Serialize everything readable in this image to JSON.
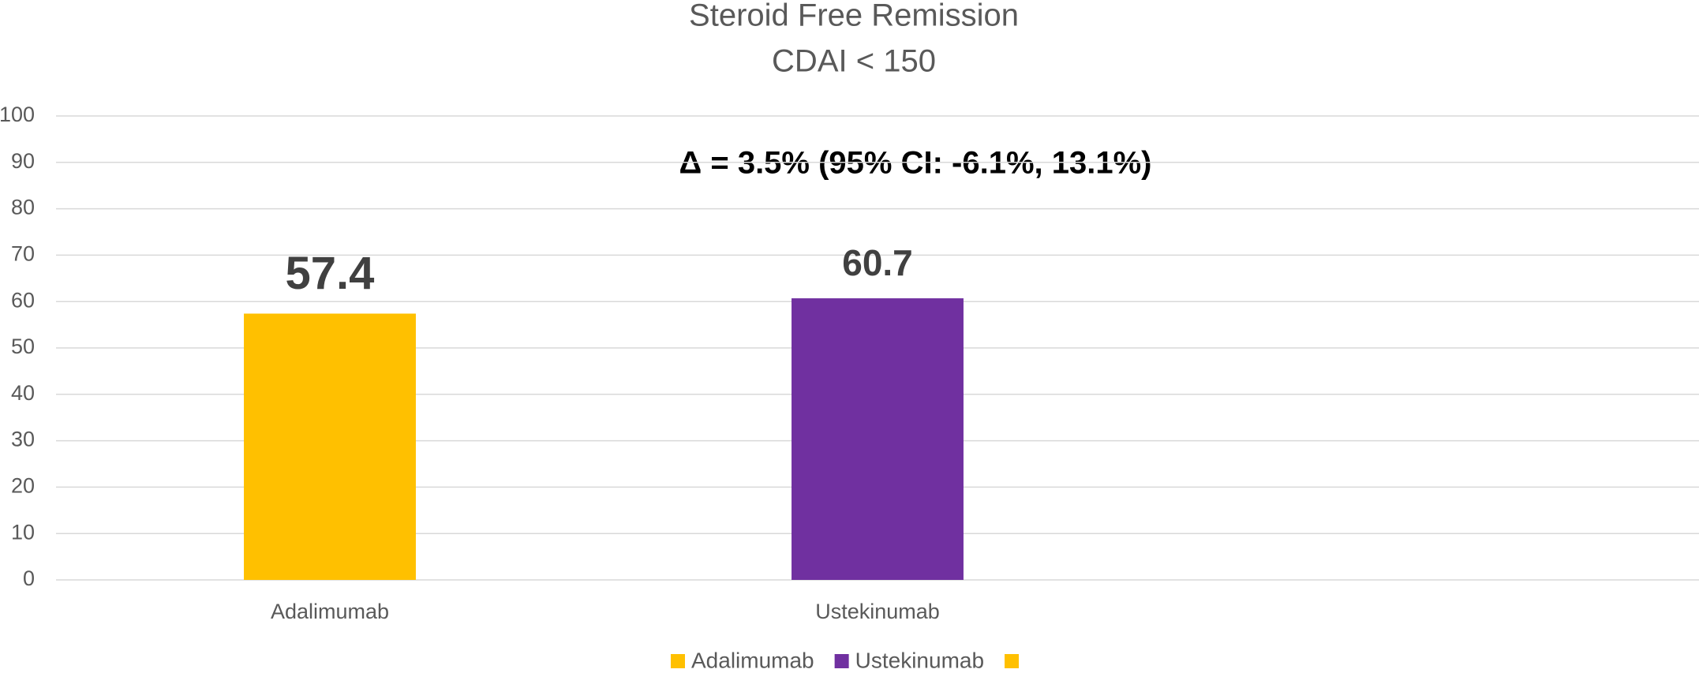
{
  "chart_data": {
    "type": "bar",
    "title": [
      "Steroid Free Remission",
      "CDAI < 150"
    ],
    "annotation": "Δ = 3.5% (95% CI: -6.1%, 13.1%)",
    "categories": [
      "Adalimumab",
      "Ustekinumab",
      null
    ],
    "values": [
      57.4,
      60.7,
      null
    ],
    "colors": [
      "#ffc000",
      "#7030a0",
      "#ffc000"
    ],
    "ylim": [
      0,
      100
    ],
    "yticks": [
      0,
      10,
      20,
      30,
      40,
      50,
      60,
      70,
      80,
      90,
      100
    ],
    "grid": true,
    "legend": "bottom"
  }
}
